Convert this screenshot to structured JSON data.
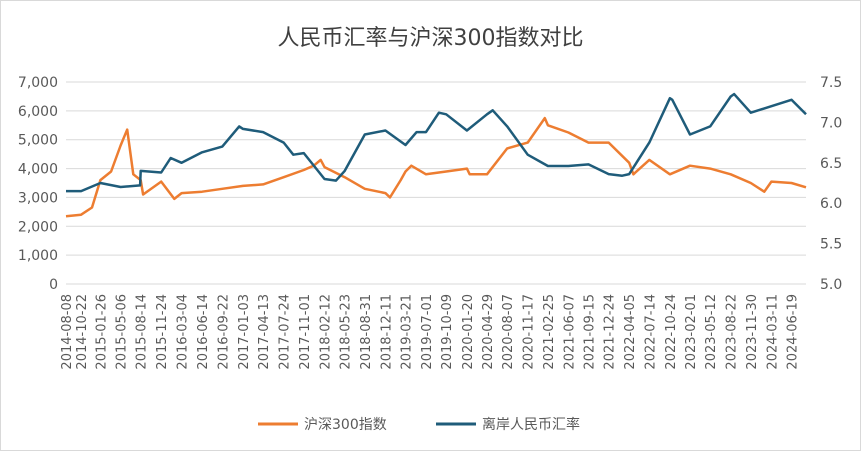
{
  "chart_data": {
    "type": "line",
    "title": "人民币汇率与沪深300指数对比",
    "legend_position": "bottom",
    "grid": true,
    "y_left": {
      "ylim": [
        0,
        7000
      ],
      "ticks": [
        "0",
        "1,000",
        "2,000",
        "3,000",
        "4,000",
        "5,000",
        "6,000",
        "7,000"
      ]
    },
    "y_right": {
      "ylim": [
        5.0,
        7.5
      ],
      "ticks": [
        "5.0",
        "5.5",
        "6.0",
        "6.5",
        "7.0",
        "7.5"
      ]
    },
    "x_ticks": [
      "2014-08-08",
      "2014-10-22",
      "2015-01-26",
      "2015-05-06",
      "2015-08-14",
      "2015-11-24",
      "2016-03-04",
      "2016-06-14",
      "2016-09-22",
      "2017-01-03",
      "2017-04-13",
      "2017-07-24",
      "2017-11-01",
      "2018-02-12",
      "2018-05-23",
      "2018-08-31",
      "2018-12-11",
      "2019-03-21",
      "2019-07-01",
      "2019-10-09",
      "2020-01-20",
      "2020-04-29",
      "2020-08-07",
      "2020-11-17",
      "2021-02-25",
      "2021-06-07",
      "2021-09-15",
      "2021-12-24",
      "2022-04-05",
      "2022-07-14",
      "2022-10-24",
      "2023-02-01",
      "2023-05-12",
      "2023-08-22",
      "2023-11-30",
      "2024-03-11",
      "2024-06-19"
    ],
    "series": [
      {
        "name": "沪深300指数",
        "axis": "left",
        "color": "#ed7d31",
        "x": [
          "2014-08-08",
          "2014-10-22",
          "2014-12-15",
          "2015-01-26",
          "2015-03-20",
          "2015-05-06",
          "2015-06-08",
          "2015-07-08",
          "2015-08-14",
          "2015-08-26",
          "2015-11-24",
          "2016-01-28",
          "2016-03-04",
          "2016-06-14",
          "2016-09-22",
          "2017-01-03",
          "2017-04-13",
          "2017-07-24",
          "2017-11-01",
          "2017-12-20",
          "2018-01-24",
          "2018-02-12",
          "2018-05-23",
          "2018-08-31",
          "2018-12-11",
          "2019-01-03",
          "2019-02-25",
          "2019-03-21",
          "2019-04-19",
          "2019-07-01",
          "2019-10-09",
          "2020-01-20",
          "2020-02-03",
          "2020-04-29",
          "2020-08-07",
          "2020-11-17",
          "2021-02-10",
          "2021-02-25",
          "2021-06-07",
          "2021-09-15",
          "2021-12-24",
          "2022-04-05",
          "2022-04-26",
          "2022-07-14",
          "2022-10-24",
          "2023-02-01",
          "2023-05-12",
          "2023-08-22",
          "2023-11-30",
          "2024-02-05",
          "2024-03-11",
          "2024-06-19",
          "2024-08-30"
        ],
        "values": [
          2350,
          2400,
          2650,
          3600,
          3900,
          4800,
          5350,
          3800,
          3600,
          3100,
          3550,
          2950,
          3150,
          3200,
          3300,
          3400,
          3450,
          3700,
          3950,
          4100,
          4300,
          4050,
          3700,
          3300,
          3150,
          3000,
          3600,
          3900,
          4100,
          3800,
          3900,
          4000,
          3800,
          3800,
          4700,
          4900,
          5750,
          5500,
          5250,
          4900,
          4900,
          4200,
          3800,
          4300,
          3800,
          4100,
          4000,
          3800,
          3500,
          3200,
          3550,
          3500,
          3350
        ]
      },
      {
        "name": "离岸人民币汇率",
        "axis": "right",
        "color": "#1f5c7a",
        "x": [
          "2014-08-08",
          "2014-10-22",
          "2015-01-26",
          "2015-05-06",
          "2015-08-11",
          "2015-08-14",
          "2015-11-24",
          "2016-01-10",
          "2016-03-04",
          "2016-06-14",
          "2016-09-22",
          "2016-12-15",
          "2017-01-03",
          "2017-04-13",
          "2017-07-24",
          "2017-09-10",
          "2017-11-01",
          "2018-02-12",
          "2018-04-10",
          "2018-05-23",
          "2018-08-31",
          "2018-12-11",
          "2019-03-21",
          "2019-05-15",
          "2019-07-01",
          "2019-09-03",
          "2019-10-09",
          "2020-01-20",
          "2020-04-29",
          "2020-05-27",
          "2020-08-07",
          "2020-11-17",
          "2021-02-25",
          "2021-06-07",
          "2021-09-15",
          "2021-12-24",
          "2022-03-01",
          "2022-04-05",
          "2022-07-14",
          "2022-10-24",
          "2022-11-05",
          "2023-02-01",
          "2023-05-12",
          "2023-08-22",
          "2023-09-08",
          "2023-11-30",
          "2024-03-11",
          "2024-06-19",
          "2024-08-30"
        ],
        "values": [
          6.15,
          6.15,
          6.25,
          6.2,
          6.22,
          6.4,
          6.38,
          6.56,
          6.5,
          6.63,
          6.7,
          6.95,
          6.92,
          6.88,
          6.75,
          6.6,
          6.62,
          6.3,
          6.28,
          6.4,
          6.85,
          6.9,
          6.72,
          6.88,
          6.88,
          7.12,
          7.1,
          6.9,
          7.1,
          7.15,
          6.95,
          6.6,
          6.46,
          6.46,
          6.48,
          6.36,
          6.34,
          6.36,
          6.75,
          7.3,
          7.28,
          6.85,
          6.95,
          7.32,
          7.35,
          7.12,
          7.2,
          7.28,
          7.1
        ]
      }
    ]
  }
}
